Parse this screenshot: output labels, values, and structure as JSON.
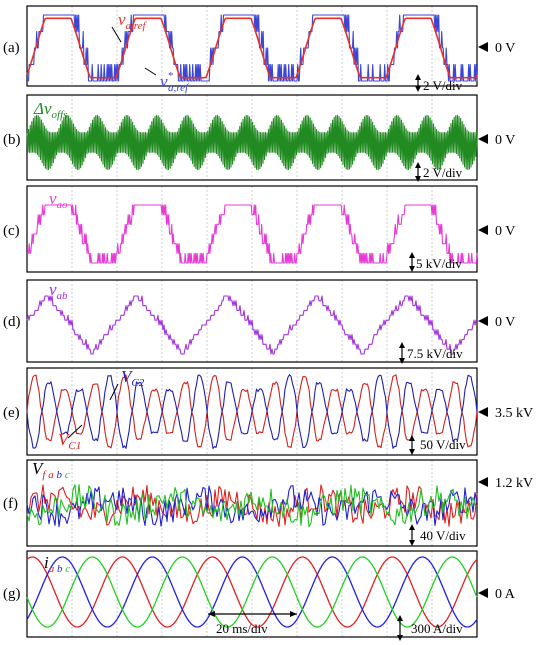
{
  "chart_data": [
    {
      "panel": "(a)",
      "type": "line",
      "series_labels": [
        "v_{a,ref}",
        "v^{*}_{a,ref}"
      ],
      "series_colors": [
        "#e8302b",
        "#3b46d6"
      ],
      "zero_marker": "0 V",
      "scale": "2 V/div"
    },
    {
      "panel": "(b)",
      "type": "line",
      "series_labels": [
        "Δv_{offs}"
      ],
      "series_colors": [
        "#218a21"
      ],
      "zero_marker": "0 V",
      "scale": "2 V/div"
    },
    {
      "panel": "(c)",
      "type": "line",
      "series_labels": [
        "v_{ao}"
      ],
      "series_colors": [
        "#e83ad8"
      ],
      "zero_marker": "0 V",
      "scale": "5 kV/div"
    },
    {
      "panel": "(d)",
      "type": "line",
      "series_labels": [
        "v_{ab}"
      ],
      "series_colors": [
        "#a030e0"
      ],
      "zero_marker": "0 V",
      "scale": "7.5 kV/div"
    },
    {
      "panel": "(e)",
      "type": "line",
      "series_labels": [
        "V_{C1}",
        "V_{C2}"
      ],
      "series_colors": [
        "#d02020",
        "#2020b0"
      ],
      "zero_marker": "3.5 kV",
      "scale": "50 V/div"
    },
    {
      "panel": "(f)",
      "type": "line",
      "series_labels": [
        "V_{f abc}"
      ],
      "series_colors": [
        "#e02020",
        "#2020d0",
        "#20c020"
      ],
      "zero_marker": "1.2 kV",
      "scale": "40 V/div"
    },
    {
      "panel": "(g)",
      "type": "line",
      "series_labels": [
        "i_{abc}"
      ],
      "series_colors": [
        "#e02020",
        "#2020e0",
        "#20d020"
      ],
      "zero_marker": "0 A",
      "scale": "300 A/div",
      "time_scale": "20 ms/div"
    }
  ]
}
